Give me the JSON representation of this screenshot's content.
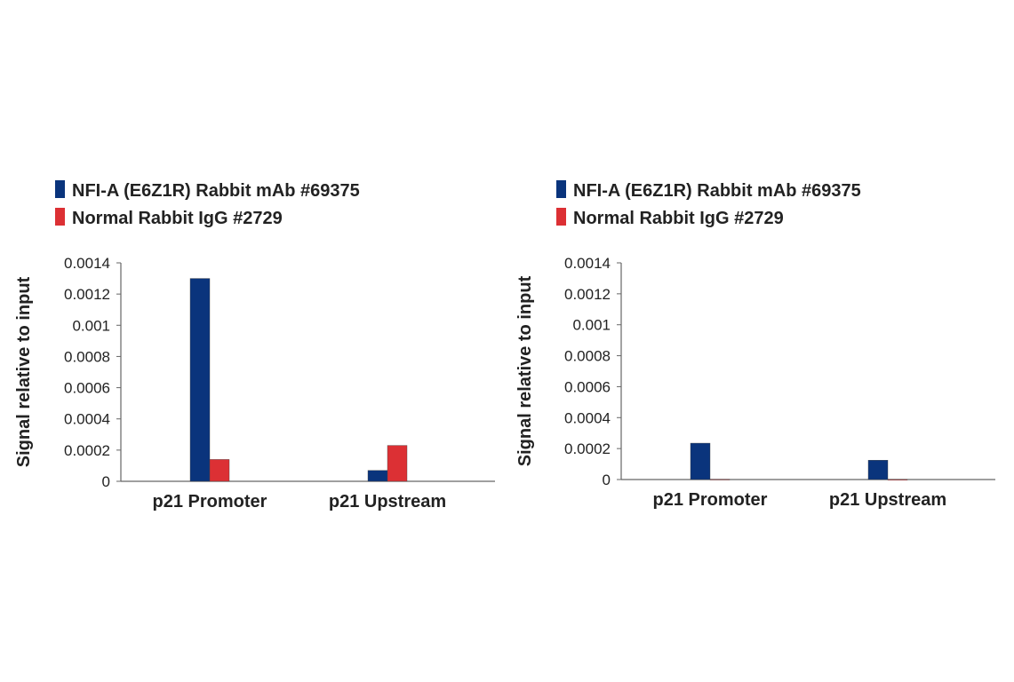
{
  "colors": {
    "nfia": "#0a347c",
    "igg": "#dc3034"
  },
  "chart_data": [
    {
      "type": "bar",
      "ylabel": "Signal relative to input",
      "ylim": [
        0,
        0.0014
      ],
      "yticks": [
        "0",
        "0.0002",
        "0.0004",
        "0.0006",
        "0.0008",
        "0.001",
        "0.0012",
        "0.0014"
      ],
      "legend_position": "top-left",
      "categories": [
        "p21 Promoter",
        "p21 Upstream"
      ],
      "series": [
        {
          "name": "NFI-A (E6Z1R) Rabbit mAb #69375",
          "values": [
            0.0013,
            7e-05
          ]
        },
        {
          "name": "Normal Rabbit IgG #2729",
          "values": [
            0.00014,
            0.00023
          ]
        }
      ]
    },
    {
      "type": "bar",
      "ylabel": "Signal relative to input",
      "ylim": [
        0,
        0.0014
      ],
      "yticks": [
        "0",
        "0.0002",
        "0.0004",
        "0.0006",
        "0.0008",
        "0.001",
        "0.0012",
        "0.0014"
      ],
      "legend_position": "top-left",
      "categories": [
        "p21 Promoter",
        "p21 Upstream"
      ],
      "series": [
        {
          "name": "NFI-A (E6Z1R) Rabbit mAb #69375",
          "values": [
            0.000235,
            0.000125
          ]
        },
        {
          "name": "Normal Rabbit IgG #2729",
          "values": [
            2e-06,
            1e-06
          ]
        }
      ]
    }
  ]
}
